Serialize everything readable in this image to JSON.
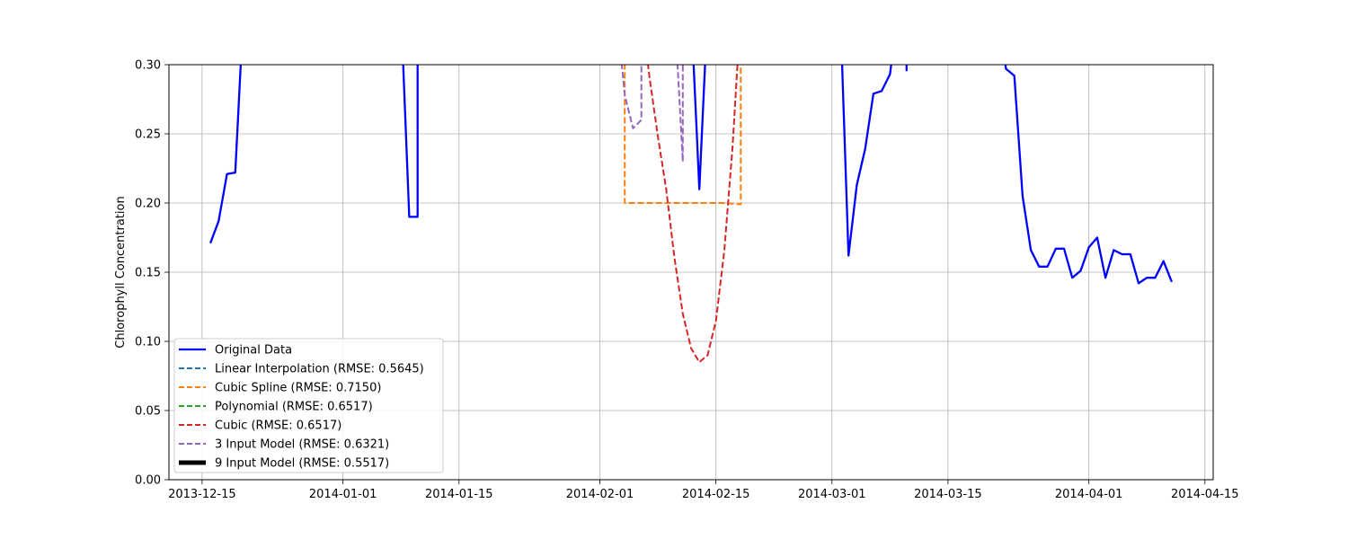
{
  "chart_data": {
    "type": "line",
    "xlabel": "",
    "ylabel": "Chlorophyll Concentration",
    "ylim": [
      0.0,
      0.3
    ],
    "xlim": [
      "2013-12-11",
      "2014-04-16"
    ],
    "grid": true,
    "legend_location": "lower-left",
    "x_ticks": [
      "2013-12-15",
      "2014-01-01",
      "2014-01-15",
      "2014-02-01",
      "2014-02-15",
      "2014-03-01",
      "2014-03-15",
      "2014-04-01",
      "2014-04-15"
    ],
    "y_ticks": [
      "0.00",
      "0.05",
      "0.10",
      "0.15",
      "0.20",
      "0.25",
      "0.30"
    ],
    "series": [
      {
        "name": "Original Data",
        "color": "#0000ff",
        "style": "solid",
        "segments": [
          [
            [
              "2013-12-16",
              0.171
            ],
            [
              "2013-12-17",
              0.187
            ],
            [
              "2013-12-18",
              0.221
            ],
            [
              "2013-12-19",
              0.222
            ],
            [
              "2013-12-20",
              0.34
            ]
          ],
          [
            [
              "2014-01-08",
              0.34
            ],
            [
              "2014-01-09",
              0.19
            ],
            [
              "2014-01-10",
              0.19
            ],
            [
              "2014-01-10",
              0.34
            ]
          ],
          [
            [
              "2014-02-12",
              0.34
            ],
            [
              "2014-02-13",
              0.21
            ],
            [
              "2014-02-14",
              0.34
            ]
          ],
          [
            [
              "2014-03-02",
              0.34
            ],
            [
              "2014-03-03",
              0.162
            ],
            [
              "2014-03-04",
              0.213
            ],
            [
              "2014-03-05",
              0.239
            ],
            [
              "2014-03-06",
              0.279
            ],
            [
              "2014-03-07",
              0.281
            ],
            [
              "2014-03-08",
              0.293
            ],
            [
              "2014-03-09",
              0.34
            ]
          ],
          [
            [
              "2014-03-10",
              0.34
            ],
            [
              "2014-03-10",
              0.296
            ],
            [
              "2014-03-10",
              0.34
            ]
          ],
          [
            [
              "2014-03-21",
              0.34
            ],
            [
              "2014-03-22",
              0.297
            ],
            [
              "2014-03-23",
              0.292
            ],
            [
              "2014-03-24",
              0.205
            ],
            [
              "2014-03-25",
              0.166
            ],
            [
              "2014-03-26",
              0.154
            ],
            [
              "2014-03-27",
              0.154
            ],
            [
              "2014-03-28",
              0.167
            ],
            [
              "2014-03-29",
              0.167
            ],
            [
              "2014-03-30",
              0.146
            ],
            [
              "2014-03-31",
              0.151
            ],
            [
              "2014-04-01",
              0.168
            ],
            [
              "2014-04-02",
              0.175
            ],
            [
              "2014-04-03",
              0.146
            ],
            [
              "2014-04-04",
              0.166
            ],
            [
              "2014-04-05",
              0.163
            ],
            [
              "2014-04-06",
              0.163
            ],
            [
              "2014-04-07",
              0.142
            ],
            [
              "2014-04-08",
              0.146
            ],
            [
              "2014-04-09",
              0.146
            ],
            [
              "2014-04-10",
              0.158
            ],
            [
              "2014-04-11",
              0.143
            ]
          ]
        ]
      },
      {
        "name": "Linear Interpolation (RMSE: 0.5645)",
        "color": "#1f77b4",
        "style": "dashed",
        "segments": []
      },
      {
        "name": "Cubic Spline (RMSE: 0.7150)",
        "color": "#ff7f0e",
        "style": "dashed",
        "segments": [
          [
            [
              "2014-02-04",
              0.34
            ],
            [
              "2014-02-04",
              0.2
            ],
            [
              "2014-02-07",
              0.2
            ],
            [
              "2014-02-10",
              0.2
            ],
            [
              "2014-02-13",
              0.2
            ],
            [
              "2014-02-16",
              0.2
            ],
            [
              "2014-02-18",
              0.199
            ],
            [
              "2014-02-18",
              0.34
            ]
          ]
        ]
      },
      {
        "name": "Polynomial (RMSE: 0.6517)",
        "color": "#2ca02c",
        "style": "dashed",
        "segments": []
      },
      {
        "name": "Cubic (RMSE: 0.6517)",
        "color": "#d62728",
        "style": "dashed",
        "segments": [
          [
            [
              "2014-02-06",
              0.34
            ],
            [
              "2014-02-07",
              0.29
            ],
            [
              "2014-02-08",
              0.248
            ],
            [
              "2014-02-09",
              0.21
            ],
            [
              "2014-02-10",
              0.16
            ],
            [
              "2014-02-11",
              0.12
            ],
            [
              "2014-02-12",
              0.095
            ],
            [
              "2014-02-13",
              0.085
            ],
            [
              "2014-02-14",
              0.09
            ],
            [
              "2014-02-15",
              0.115
            ],
            [
              "2014-02-16",
              0.165
            ],
            [
              "2014-02-17",
              0.24
            ],
            [
              "2014-02-18",
              0.34
            ]
          ]
        ]
      },
      {
        "name": "3 Input Model (RMSE: 0.6321)",
        "color": "#9467bd",
        "style": "dashed",
        "segments": [
          [
            [
              "2014-02-03",
              0.34
            ],
            [
              "2014-02-04",
              0.278
            ],
            [
              "2014-02-05",
              0.254
            ],
            [
              "2014-02-06",
              0.26
            ],
            [
              "2014-02-06",
              0.34
            ]
          ],
          [
            [
              "2014-02-10",
              0.34
            ],
            [
              "2014-02-11",
              0.23
            ],
            [
              "2014-02-11",
              0.34
            ]
          ]
        ]
      },
      {
        "name": "9 Input Model (RMSE: 0.5517)",
        "color": "#000000",
        "style": "thick",
        "segments": []
      }
    ]
  }
}
